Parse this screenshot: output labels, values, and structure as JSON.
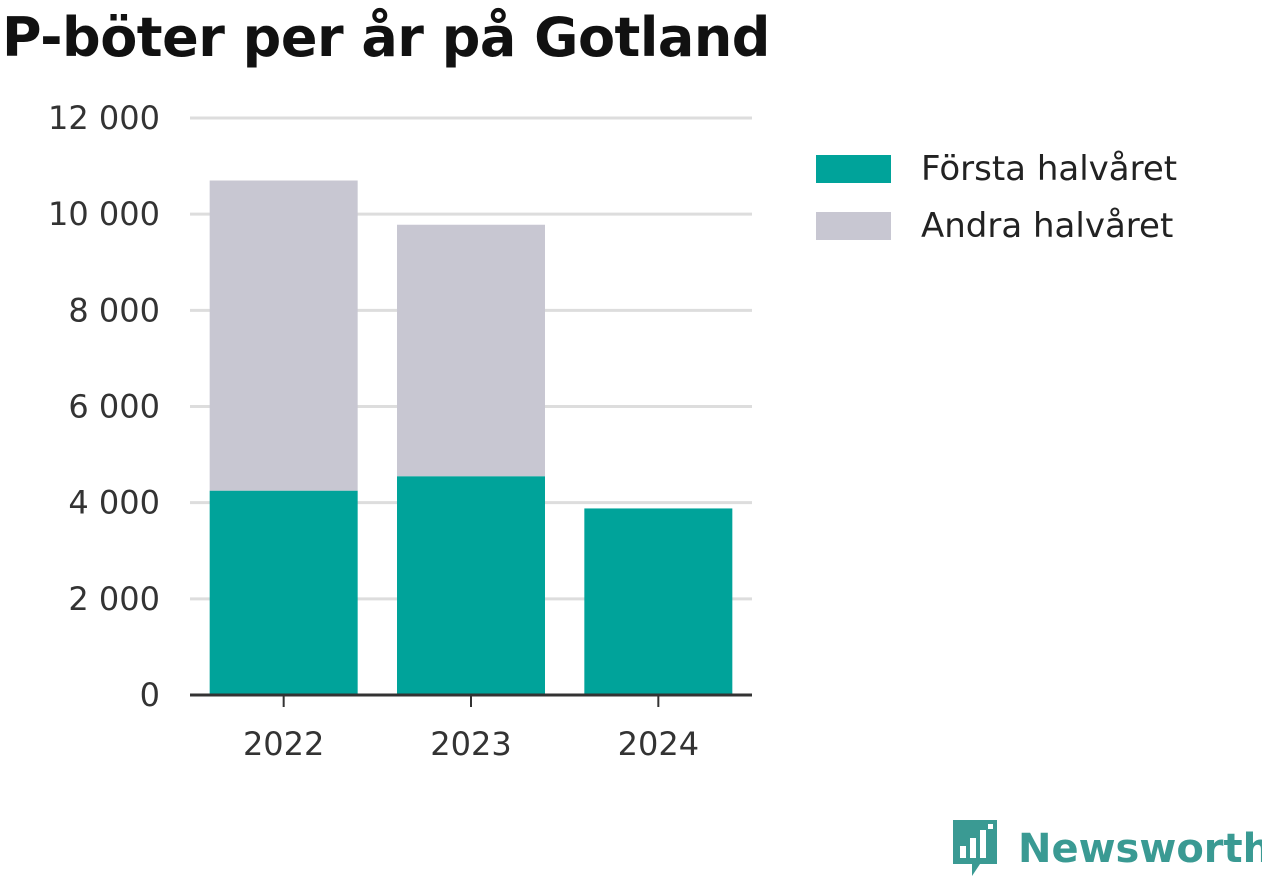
{
  "title": "P-böter per år på Gotland",
  "colors": {
    "first_half": "#00a39a",
    "second_half": "#c8c7d2",
    "grid": "#dddddd",
    "axis": "#333333",
    "brand": "#3a9a93"
  },
  "legend": {
    "items": [
      {
        "label": "Första halvåret",
        "color": "#00a39a"
      },
      {
        "label": "Andra halvåret",
        "color": "#c8c7d2"
      }
    ]
  },
  "logo": {
    "text": "Newsworthy",
    "icon": "newsworthy-logo-icon"
  },
  "chart_data": {
    "type": "bar",
    "stacked": true,
    "title": "P-böter per år på Gotland",
    "categories": [
      "2022",
      "2023",
      "2024"
    ],
    "series": [
      {
        "name": "Första halvåret",
        "values": [
          4250,
          4550,
          3880
        ]
      },
      {
        "name": "Andra halvåret",
        "values": [
          6450,
          5230,
          0
        ]
      }
    ],
    "ylim": [
      0,
      12000
    ],
    "yticks": [
      0,
      2000,
      4000,
      6000,
      8000,
      10000,
      12000
    ],
    "ytick_labels": [
      "0",
      "2 000",
      "4 000",
      "6 000",
      "8 000",
      "10 000",
      "12 000"
    ],
    "xlabel": "",
    "ylabel": "",
    "grid": true,
    "legend_position": "top-right"
  }
}
